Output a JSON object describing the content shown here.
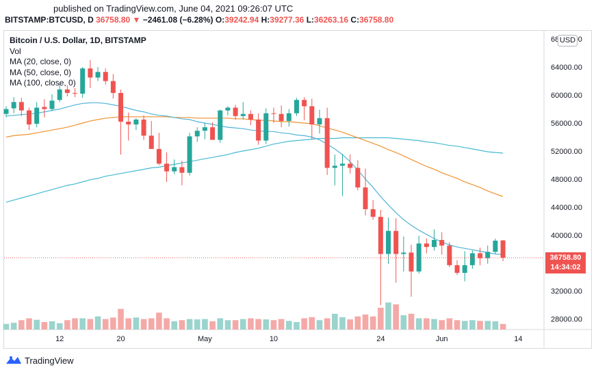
{
  "header": {
    "published": "published on TradingView.com, June 04, 2021 09:26:07 UTC",
    "symbol": "BITSTAMP:BTCUSD, D",
    "last": "36758.80",
    "arrow": "▼",
    "change": "−2461.08 (−6.28%)",
    "o_label": "O:",
    "o": "39242.94",
    "h_label": "H:",
    "h": "39277.36",
    "l_label": "L:",
    "l": "36263.16",
    "c_label": "C:",
    "c": "36758.80"
  },
  "legend": {
    "title": "Bitcoin / U.S. Dollar, 1D, BITSTAMP",
    "vol": "Vol",
    "ma20": "MA (20, close, 0)",
    "ma50": "MA (50, close, 0)",
    "ma100": "MA (100, close, 0)"
  },
  "currency_badge": "USD",
  "price_tag": {
    "price": "36758.80",
    "countdown": "14:34:02"
  },
  "footer": {
    "brand": "TradingView",
    "logo_icon": "tradingview-logo-icon"
  },
  "colors": {
    "up": "#26a69a",
    "down": "#ef5350",
    "vol_up": "#9bd3cd",
    "vol_down": "#f4a9a7",
    "ma20": "#4fb3d9",
    "ma50": "#f0912f",
    "ma100": "#45b9d0"
  },
  "chart_data": {
    "type": "candlestick",
    "x_ticks": [
      {
        "label": "12",
        "index": 7
      },
      {
        "label": "20",
        "index": 15
      },
      {
        "label": "May",
        "index": 26
      },
      {
        "label": "10",
        "index": 35
      },
      {
        "label": "24",
        "index": 49
      },
      {
        "label": "Jun",
        "index": 57
      },
      {
        "label": "14",
        "index": 67
      }
    ],
    "y_ticks": [
      {
        "label": "28000.00",
        "value": 28000
      },
      {
        "label": "32000.00",
        "value": 32000
      },
      {
        "label": "36000.00",
        "value": 36000
      },
      {
        "label": "40000.00",
        "value": 40000
      },
      {
        "label": "44000.00",
        "value": 44000
      },
      {
        "label": "48000.00",
        "value": 48000
      },
      {
        "label": "52000.00",
        "value": 52000
      },
      {
        "label": "56000.00",
        "value": 56000
      },
      {
        "label": "60000.00",
        "value": 60000
      },
      {
        "label": "64000.00",
        "value": 64000
      },
      {
        "label": "68000.00",
        "value": 68000
      }
    ],
    "ylim": [
      26000,
      68600
    ],
    "grid": false,
    "last_price": 36758.8,
    "candles": [
      {
        "o": 57300,
        "h": 58400,
        "l": 56800,
        "c": 58000
      },
      {
        "o": 58100,
        "h": 59700,
        "l": 57400,
        "c": 59000
      },
      {
        "o": 59000,
        "h": 59600,
        "l": 57000,
        "c": 57800
      },
      {
        "o": 57800,
        "h": 58200,
        "l": 55000,
        "c": 55800
      },
      {
        "o": 55900,
        "h": 59000,
        "l": 55400,
        "c": 58200
      },
      {
        "o": 58300,
        "h": 59400,
        "l": 56800,
        "c": 58000
      },
      {
        "o": 58000,
        "h": 60100,
        "l": 57700,
        "c": 59200
      },
      {
        "o": 59300,
        "h": 61600,
        "l": 59000,
        "c": 60800
      },
      {
        "o": 60800,
        "h": 61400,
        "l": 59800,
        "c": 60300
      },
      {
        "o": 60300,
        "h": 61000,
        "l": 59700,
        "c": 60200
      },
      {
        "o": 60200,
        "h": 64000,
        "l": 59600,
        "c": 63800
      },
      {
        "o": 63800,
        "h": 65000,
        "l": 61000,
        "c": 62500
      },
      {
        "o": 62500,
        "h": 64000,
        "l": 62000,
        "c": 63300
      },
      {
        "o": 63300,
        "h": 63800,
        "l": 61500,
        "c": 62000
      },
      {
        "o": 62000,
        "h": 63000,
        "l": 59500,
        "c": 60300
      },
      {
        "o": 60300,
        "h": 60800,
        "l": 51500,
        "c": 56200
      },
      {
        "o": 56200,
        "h": 57500,
        "l": 53500,
        "c": 55800
      },
      {
        "o": 55800,
        "h": 56700,
        "l": 55000,
        "c": 56500
      },
      {
        "o": 56500,
        "h": 57100,
        "l": 53600,
        "c": 54200
      },
      {
        "o": 54200,
        "h": 56300,
        "l": 52600,
        "c": 52300
      },
      {
        "o": 52300,
        "h": 54600,
        "l": 50000,
        "c": 50200
      },
      {
        "o": 50200,
        "h": 51800,
        "l": 47600,
        "c": 49100
      },
      {
        "o": 49100,
        "h": 50800,
        "l": 48700,
        "c": 49700
      },
      {
        "o": 49700,
        "h": 50600,
        "l": 47100,
        "c": 48900
      },
      {
        "o": 48900,
        "h": 54600,
        "l": 48500,
        "c": 54100
      },
      {
        "o": 54100,
        "h": 55400,
        "l": 53300,
        "c": 54900
      },
      {
        "o": 54900,
        "h": 56000,
        "l": 53700,
        "c": 55400
      },
      {
        "o": 55400,
        "h": 56100,
        "l": 53600,
        "c": 53600
      },
      {
        "o": 53600,
        "h": 57900,
        "l": 53200,
        "c": 57800
      },
      {
        "o": 57800,
        "h": 58400,
        "l": 57100,
        "c": 58200
      },
      {
        "o": 58200,
        "h": 58600,
        "l": 56500,
        "c": 57000
      },
      {
        "o": 57000,
        "h": 59000,
        "l": 56500,
        "c": 57300
      },
      {
        "o": 57300,
        "h": 57800,
        "l": 55700,
        "c": 56500
      },
      {
        "o": 56500,
        "h": 57400,
        "l": 52900,
        "c": 53500
      },
      {
        "o": 53500,
        "h": 58100,
        "l": 53000,
        "c": 57400
      },
      {
        "o": 57400,
        "h": 58200,
        "l": 56000,
        "c": 57300
      },
      {
        "o": 57300,
        "h": 58500,
        "l": 55400,
        "c": 56300
      },
      {
        "o": 56300,
        "h": 58000,
        "l": 55500,
        "c": 57400
      },
      {
        "o": 57400,
        "h": 59600,
        "l": 57000,
        "c": 59300
      },
      {
        "o": 59300,
        "h": 59700,
        "l": 56400,
        "c": 58400
      },
      {
        "o": 58400,
        "h": 59500,
        "l": 53700,
        "c": 55800
      },
      {
        "o": 55800,
        "h": 57900,
        "l": 54500,
        "c": 56700
      },
      {
        "o": 56700,
        "h": 58200,
        "l": 48600,
        "c": 49600
      },
      {
        "o": 49600,
        "h": 51500,
        "l": 47100,
        "c": 49900
      },
      {
        "o": 49900,
        "h": 51600,
        "l": 45600,
        "c": 50200
      },
      {
        "o": 50200,
        "h": 51500,
        "l": 48800,
        "c": 49600
      },
      {
        "o": 49600,
        "h": 50700,
        "l": 46400,
        "c": 46800
      },
      {
        "o": 46800,
        "h": 49500,
        "l": 42800,
        "c": 43700
      },
      {
        "o": 43700,
        "h": 45000,
        "l": 42200,
        "c": 42600
      },
      {
        "o": 42600,
        "h": 43600,
        "l": 30000,
        "c": 37300
      },
      {
        "o": 37300,
        "h": 42500,
        "l": 35900,
        "c": 40600
      },
      {
        "o": 40600,
        "h": 42400,
        "l": 33200,
        "c": 37300
      },
      {
        "o": 37300,
        "h": 39800,
        "l": 34800,
        "c": 37500
      },
      {
        "o": 37500,
        "h": 38600,
        "l": 31200,
        "c": 34800
      },
      {
        "o": 34800,
        "h": 39900,
        "l": 34500,
        "c": 38800
      },
      {
        "o": 38800,
        "h": 39500,
        "l": 37400,
        "c": 38300
      },
      {
        "o": 38300,
        "h": 40800,
        "l": 37800,
        "c": 39300
      },
      {
        "o": 39300,
        "h": 40400,
        "l": 37200,
        "c": 38500
      },
      {
        "o": 38500,
        "h": 39000,
        "l": 35400,
        "c": 35700
      },
      {
        "o": 35700,
        "h": 36400,
        "l": 34300,
        "c": 34600
      },
      {
        "o": 34600,
        "h": 37700,
        "l": 33400,
        "c": 35700
      },
      {
        "o": 35700,
        "h": 37800,
        "l": 35200,
        "c": 37400
      },
      {
        "o": 37400,
        "h": 38200,
        "l": 35700,
        "c": 36700
      },
      {
        "o": 36700,
        "h": 38500,
        "l": 35900,
        "c": 37600
      },
      {
        "o": 37600,
        "h": 39500,
        "l": 37300,
        "c": 39200
      },
      {
        "o": 39243,
        "h": 39277,
        "l": 36263,
        "c": 36759
      }
    ],
    "volume_rel": [
      0.15,
      0.18,
      0.25,
      0.3,
      0.26,
      0.2,
      0.22,
      0.17,
      0.25,
      0.3,
      0.3,
      0.28,
      0.35,
      0.28,
      0.32,
      0.55,
      0.3,
      0.32,
      0.28,
      0.3,
      0.45,
      0.3,
      0.22,
      0.25,
      0.28,
      0.27,
      0.28,
      0.22,
      0.3,
      0.25,
      0.25,
      0.28,
      0.3,
      0.28,
      0.27,
      0.25,
      0.28,
      0.23,
      0.2,
      0.3,
      0.33,
      0.25,
      0.3,
      0.42,
      0.33,
      0.27,
      0.35,
      0.4,
      0.35,
      0.58,
      0.72,
      0.67,
      0.38,
      0.42,
      0.3,
      0.3,
      0.28,
      0.25,
      0.3,
      0.25,
      0.23,
      0.25,
      0.23,
      0.23,
      0.22,
      0.15
    ],
    "volume_max": 1.0,
    "ma20": [
      57000,
      57100,
      57200,
      57300,
      57400,
      57600,
      57800,
      58000,
      58300,
      58600,
      58800,
      58900,
      58900,
      58800,
      58600,
      58400,
      58100,
      57800,
      57600,
      57300,
      57100,
      57000,
      56800,
      56600,
      56500,
      56200,
      56000,
      55800,
      55600,
      55400,
      55300,
      55200,
      55000,
      54900,
      54800,
      54800,
      54600,
      54500,
      54300,
      54200,
      54000,
      53600,
      53000,
      52300,
      51500,
      50500,
      49300,
      48000,
      46800,
      45500,
      44300,
      43200,
      42200,
      41400,
      40700,
      40100,
      39500,
      39000,
      38600,
      38300,
      38100,
      37900,
      37700,
      37500,
      37300,
      37200
    ],
    "ma50": [
      54000,
      54200,
      54300,
      54400,
      54600,
      54800,
      55000,
      55200,
      55400,
      55700,
      56000,
      56300,
      56500,
      56700,
      56800,
      56900,
      56900,
      56900,
      56900,
      56900,
      56900,
      56900,
      56800,
      56800,
      56800,
      56700,
      56700,
      56700,
      56700,
      56700,
      56600,
      56600,
      56500,
      56400,
      56400,
      56300,
      56200,
      56200,
      56100,
      56000,
      55900,
      55600,
      55300,
      55000,
      54700,
      54300,
      53900,
      53500,
      53100,
      52700,
      52200,
      51800,
      51300,
      50800,
      50300,
      49800,
      49400,
      48900,
      48500,
      48100,
      47600,
      47200,
      46800,
      46300,
      45900,
      45500
    ],
    "ma100": [
      44700,
      45000,
      45300,
      45600,
      45900,
      46200,
      46500,
      46800,
      47100,
      47300,
      47600,
      47900,
      48100,
      48400,
      48600,
      48800,
      49000,
      49200,
      49400,
      49600,
      49700,
      49900,
      50100,
      50300,
      50500,
      50700,
      50900,
      51100,
      51300,
      51500,
      51800,
      52000,
      52200,
      52400,
      52700,
      53000,
      53200,
      53400,
      53500,
      53600,
      53700,
      53800,
      53800,
      53800,
      53900,
      53900,
      53900,
      53900,
      53900,
      53900,
      53900,
      53800,
      53700,
      53600,
      53500,
      53300,
      53200,
      53000,
      52800,
      52700,
      52500,
      52300,
      52100,
      51900,
      51800,
      51700
    ]
  }
}
